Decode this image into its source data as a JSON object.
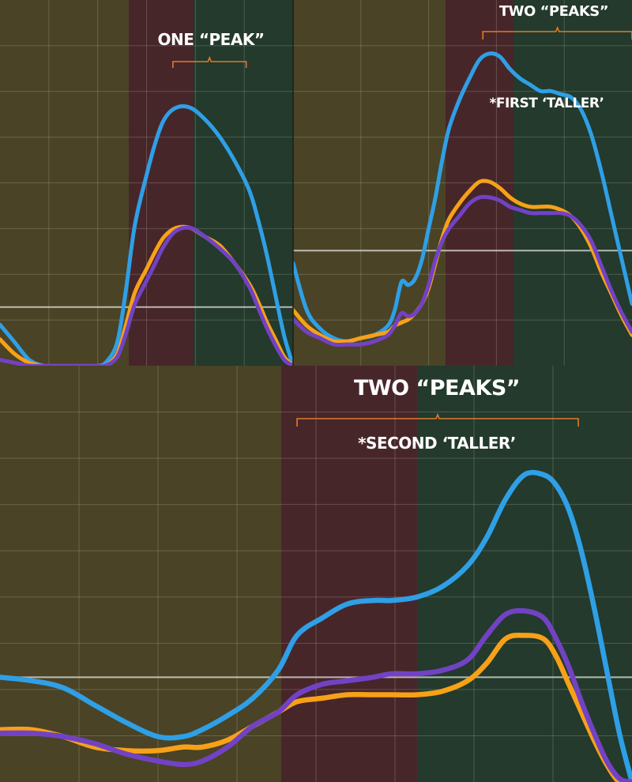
{
  "colors": {
    "zone_1": "#4a4326",
    "zone_2": "#47262a",
    "zone_3": "#233a2c",
    "blue": "#2f9fe6",
    "orange": "#f7a118",
    "purple": "#7242c4",
    "bracket": "#e07b2a"
  },
  "chart_data": [
    {
      "type": "line",
      "title": "",
      "xlabel": "",
      "ylabel": "",
      "xlim": [
        0,
        100
      ],
      "ylim": [
        0,
        100
      ],
      "grid": true,
      "zones": [
        {
          "name": "zone_1",
          "from": 0,
          "to": 44
        },
        {
          "name": "zone_2",
          "from": 44,
          "to": 66
        },
        {
          "name": "zone_3",
          "from": 66,
          "to": 100
        }
      ],
      "reference_line": 20,
      "annotations": [
        {
          "text": "ONE “PEAK”",
          "bracket_from": 59,
          "bracket_to": 84
        }
      ],
      "x": [
        0,
        5,
        10,
        15,
        20,
        25,
        30,
        33,
        36,
        40,
        43,
        46,
        50,
        53,
        56,
        60,
        65,
        70,
        75,
        80,
        85,
        88,
        91,
        94,
        97,
        100
      ],
      "series": [
        {
          "color_key": "blue",
          "values": [
            14,
            8,
            2,
            0,
            0,
            0,
            0,
            0,
            1,
            8,
            26,
            48,
            65,
            76,
            84,
            88,
            88,
            84,
            78,
            70,
            60,
            50,
            38,
            24,
            10,
            0
          ]
        },
        {
          "color_key": "orange",
          "values": [
            9,
            4,
            1,
            0,
            0,
            0,
            0,
            0,
            0,
            4,
            14,
            25,
            33,
            39,
            44,
            47,
            47,
            44,
            41,
            35,
            28,
            22,
            15,
            9,
            3,
            0
          ]
        },
        {
          "color_key": "purple",
          "values": [
            2,
            1,
            0,
            0,
            0,
            0,
            0,
            0,
            0,
            3,
            11,
            21,
            29,
            35,
            41,
            46,
            47,
            44,
            40,
            35,
            27,
            20,
            13,
            7,
            2,
            0
          ]
        }
      ]
    },
    {
      "type": "line",
      "title": "",
      "xlabel": "",
      "ylabel": "",
      "xlim": [
        0,
        100
      ],
      "ylim": [
        0,
        100
      ],
      "grid": true,
      "zones": [
        {
          "name": "zone_1",
          "from": 0,
          "to": 45
        },
        {
          "name": "zone_2",
          "from": 45,
          "to": 65
        },
        {
          "name": "zone_3",
          "from": 65,
          "to": 100
        }
      ],
      "reference_line": 31,
      "annotations": [
        {
          "text": "TWO “PEAKS”",
          "bracket_from": 56,
          "bracket_to": 100
        },
        {
          "text": "*FIRST ‘TALLER’"
        }
      ],
      "x": [
        0,
        4,
        8,
        12,
        16,
        20,
        24,
        28,
        30,
        32,
        34,
        36,
        38,
        40,
        42,
        44,
        46,
        49,
        52,
        55,
        58,
        61,
        64,
        67,
        70,
        73,
        76,
        79,
        82,
        85,
        88,
        91,
        94,
        97,
        100
      ],
      "series": [
        {
          "color_key": "blue",
          "values": [
            27,
            12,
            6,
            3,
            2,
            3,
            4,
            7,
            12,
            21,
            20,
            22,
            28,
            38,
            48,
            60,
            70,
            79,
            86,
            92,
            94,
            93,
            89,
            86,
            84,
            82,
            82,
            81,
            80,
            76,
            68,
            56,
            42,
            28,
            14
          ]
        },
        {
          "color_key": "orange",
          "values": [
            12,
            7,
            4,
            2,
            2,
            3,
            4,
            5,
            7,
            8,
            9,
            11,
            14,
            19,
            27,
            35,
            41,
            46,
            50,
            53,
            53,
            51,
            48,
            46,
            45,
            45,
            45,
            44,
            42,
            38,
            32,
            24,
            17,
            10,
            4
          ]
        },
        {
          "color_key": "purple",
          "values": [
            9,
            5,
            3,
            1,
            1,
            1,
            2,
            4,
            7,
            11,
            10,
            11,
            14,
            20,
            28,
            34,
            38,
            42,
            46,
            48,
            48,
            47,
            45,
            44,
            43,
            43,
            43,
            43,
            42,
            39,
            34,
            26,
            18,
            11,
            5
          ]
        }
      ]
    },
    {
      "type": "line",
      "title": "",
      "xlabel": "",
      "ylabel": "",
      "xlim": [
        0,
        100
      ],
      "ylim": [
        0,
        100
      ],
      "grid": true,
      "zones": [
        {
          "name": "zone_1",
          "from": 0,
          "to": 44.5
        },
        {
          "name": "zone_2",
          "from": 44.5,
          "to": 66
        },
        {
          "name": "zone_3",
          "from": 66,
          "to": 100
        }
      ],
      "reference_line": 30,
      "annotations": [
        {
          "text": "TWO “PEAKS”",
          "bracket_from": 47,
          "bracket_to": 91.5
        },
        {
          "text": "*SECOND ‘TALLER’"
        }
      ],
      "x": [
        0,
        5,
        10,
        15,
        20,
        25,
        29,
        32,
        36,
        40,
        44,
        47,
        51,
        55,
        59,
        62,
        66,
        70,
        74,
        77,
        80,
        83,
        86,
        88,
        90,
        92,
        94,
        96,
        98,
        100
      ],
      "series": [
        {
          "color_key": "blue",
          "values": [
            30,
            29,
            27,
            22,
            17,
            13,
            13,
            15,
            19,
            24,
            32,
            42,
            47,
            51,
            52,
            52,
            53,
            56,
            62,
            70,
            81,
            88,
            88,
            85,
            78,
            66,
            50,
            32,
            14,
            0
          ]
        },
        {
          "color_key": "orange",
          "values": [
            15,
            15,
            13,
            10,
            9,
            9,
            10,
            10,
            12,
            16,
            20,
            23,
            24,
            25,
            25,
            25,
            25,
            26,
            29,
            34,
            41,
            42,
            41,
            36,
            28,
            20,
            12,
            5,
            0,
            0
          ]
        },
        {
          "color_key": "purple",
          "values": [
            14,
            14,
            13,
            11,
            8,
            6,
            5,
            6,
            10,
            16,
            20,
            25,
            28,
            29,
            30,
            31,
            31,
            32,
            35,
            42,
            48,
            49,
            47,
            41,
            33,
            23,
            14,
            6,
            1,
            0
          ]
        }
      ]
    }
  ]
}
